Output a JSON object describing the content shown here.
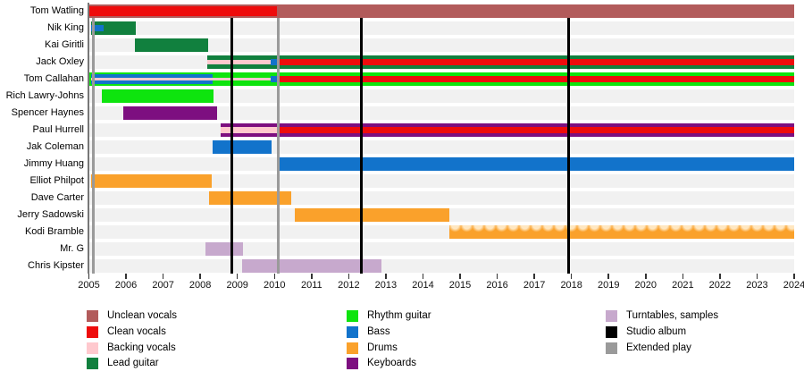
{
  "chart_data": {
    "type": "timeline",
    "description": "Band members timeline (Gantt-style) from 2005 to 2024",
    "x_axis": {
      "years": [
        2005,
        2006,
        2007,
        2008,
        2009,
        2010,
        2011,
        2012,
        2013,
        2014,
        2015,
        2016,
        2017,
        2018,
        2019,
        2020,
        2021,
        2022,
        2023,
        2024
      ],
      "range": [
        2005,
        2024
      ]
    },
    "colors": {
      "unclean_vocals": "#B25B5B",
      "clean_vocals": "#EE0C0C",
      "backing_vocals": "#FFC9CE",
      "lead_guitar": "#11803E",
      "rhythm_guitar": "#0EE40E",
      "bass": "#1273CB",
      "drums": "#FAA12B",
      "keyboards": "#7D0F80",
      "turntables": "#C7A9CD",
      "studio_album": "#000000",
      "extended_play": "#9A9A9A",
      "row_band": "#F1F1F1"
    },
    "members": [
      {
        "name": "Tom Watling",
        "segments": [
          {
            "role": "unclean_vocals",
            "from": 2005.02,
            "to": 2024.0,
            "size": "primary"
          },
          {
            "role": "clean_vocals",
            "from": 2005.02,
            "to": 2010.07,
            "size": "secondary-wide"
          }
        ]
      },
      {
        "name": "Nik King",
        "segments": [
          {
            "role": "lead_guitar",
            "from": 2005.06,
            "to": 2006.26,
            "size": "primary"
          },
          {
            "role": "bass",
            "from": 2005.06,
            "to": 2005.4,
            "size": "secondary"
          }
        ]
      },
      {
        "name": "Kai Giritli",
        "segments": [
          {
            "role": "lead_guitar",
            "from": 2006.25,
            "to": 2008.21,
            "size": "primary"
          }
        ]
      },
      {
        "name": "Jack Oxley",
        "segments": [
          {
            "role": "lead_guitar",
            "from": 2008.18,
            "to": 2024.0,
            "size": "primary"
          },
          {
            "role": "backing_vocals",
            "from": 2008.18,
            "to": 2009.9,
            "size": "secondary-narrow"
          },
          {
            "role": "bass",
            "from": 2009.9,
            "to": 2010.08,
            "size": "secondary"
          },
          {
            "role": "clean_vocals",
            "from": 2010.08,
            "to": 2024.0,
            "size": "secondary"
          }
        ]
      },
      {
        "name": "Tom Callahan",
        "segments": [
          {
            "role": "rhythm_guitar",
            "from": 2005.02,
            "to": 2024.0,
            "size": "primary"
          },
          {
            "role": "bass",
            "from": 2005.06,
            "to": 2008.33,
            "size": "secondary-wide"
          },
          {
            "role": "backing_vocals",
            "from": 2005.06,
            "to": 2009.9,
            "size": "tertiary"
          },
          {
            "role": "bass",
            "from": 2009.9,
            "to": 2010.08,
            "size": "secondary"
          },
          {
            "role": "clean_vocals",
            "from": 2010.08,
            "to": 2024.0,
            "size": "secondary"
          }
        ]
      },
      {
        "name": "Rich Lawry-Johns",
        "segments": [
          {
            "role": "rhythm_guitar",
            "from": 2005.36,
            "to": 2008.35,
            "size": "primary"
          }
        ]
      },
      {
        "name": "Spencer Haynes",
        "segments": [
          {
            "role": "keyboards",
            "from": 2005.93,
            "to": 2008.45,
            "size": "primary"
          }
        ]
      },
      {
        "name": "Paul Hurrell",
        "segments": [
          {
            "role": "keyboards",
            "from": 2008.55,
            "to": 2024.0,
            "size": "primary"
          },
          {
            "role": "backing_vocals",
            "from": 2008.55,
            "to": 2010.08,
            "size": "secondary"
          },
          {
            "role": "clean_vocals",
            "from": 2010.08,
            "to": 2024.0,
            "size": "secondary"
          }
        ]
      },
      {
        "name": "Jak Coleman",
        "segments": [
          {
            "role": "bass",
            "from": 2008.33,
            "to": 2009.92,
            "size": "primary"
          }
        ]
      },
      {
        "name": "Jimmy Huang",
        "segments": [
          {
            "role": "bass",
            "from": 2010.12,
            "to": 2024.0,
            "size": "primary"
          }
        ]
      },
      {
        "name": "Elliot Philpot",
        "segments": [
          {
            "role": "drums",
            "from": 2005.06,
            "to": 2008.3,
            "size": "primary"
          }
        ]
      },
      {
        "name": "Dave Carter",
        "segments": [
          {
            "role": "drums",
            "from": 2008.24,
            "to": 2010.45,
            "size": "primary"
          }
        ]
      },
      {
        "name": "Jerry Sadowski",
        "segments": [
          {
            "role": "drums",
            "from": 2010.55,
            "to": 2014.71,
            "size": "primary"
          }
        ]
      },
      {
        "name": "Kodi Bramble",
        "segments": [
          {
            "role": "drums",
            "from": 2014.71,
            "to": 2024.0,
            "size": "primary",
            "pattern": "scalloped-light-top"
          }
        ]
      },
      {
        "name": "Mr. G",
        "segments": [
          {
            "role": "turntables",
            "from": 2008.14,
            "to": 2009.15,
            "size": "primary"
          }
        ]
      },
      {
        "name": "Chris Kipster",
        "segments": [
          {
            "role": "turntables",
            "from": 2009.12,
            "to": 2012.88,
            "size": "primary"
          }
        ]
      }
    ],
    "releases": {
      "studio_albums": [
        2008.84,
        2012.35,
        2017.92
      ],
      "extended_plays": [
        2005.12,
        2010.1
      ]
    },
    "legend": {
      "columns": [
        [
          {
            "label": "Unclean vocals",
            "role": "unclean_vocals"
          },
          {
            "label": "Clean vocals",
            "role": "clean_vocals"
          },
          {
            "label": "Backing vocals",
            "role": "backing_vocals"
          },
          {
            "label": "Lead guitar",
            "role": "lead_guitar"
          }
        ],
        [
          {
            "label": "Rhythm guitar",
            "role": "rhythm_guitar"
          },
          {
            "label": "Bass",
            "role": "bass"
          },
          {
            "label": "Drums",
            "role": "drums"
          },
          {
            "label": "Keyboards",
            "role": "keyboards"
          }
        ],
        [
          {
            "label": "Turntables, samples",
            "role": "turntables"
          },
          {
            "label": "Studio album",
            "role": "studio_album"
          },
          {
            "label": "Extended play",
            "role": "extended_play"
          }
        ]
      ]
    }
  }
}
